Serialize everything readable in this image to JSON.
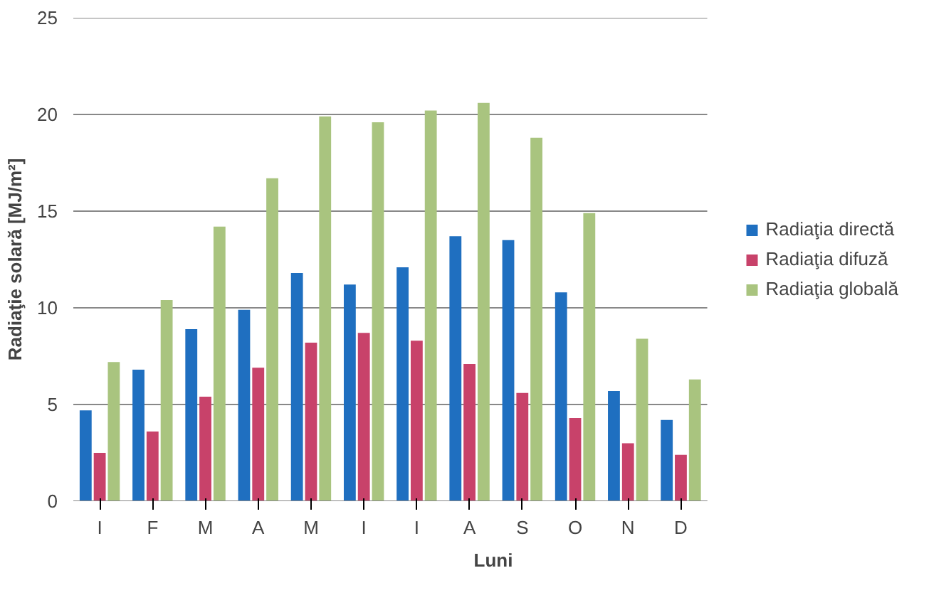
{
  "chart_data": {
    "type": "bar",
    "xlabel": "Luni",
    "ylabel": "Radiaţie solară [MJ/m²]",
    "categories": [
      "I",
      "F",
      "M",
      "A",
      "M",
      "I",
      "I",
      "A",
      "S",
      "O",
      "N",
      "D"
    ],
    "series": [
      {
        "name": "Radiaţia directă",
        "color": "#1f6fc0",
        "values": [
          4.7,
          6.8,
          8.9,
          9.9,
          11.8,
          11.2,
          12.1,
          13.7,
          13.5,
          10.8,
          5.7,
          4.2
        ]
      },
      {
        "name": "Radiaţia difuză",
        "color": "#c8426a",
        "values": [
          2.5,
          3.6,
          5.4,
          6.9,
          8.2,
          8.7,
          8.3,
          7.1,
          5.6,
          4.3,
          3.0,
          2.4
        ]
      },
      {
        "name": "Radiaţia globală",
        "color": "#a9c47f",
        "values": [
          7.2,
          10.4,
          14.2,
          16.7,
          19.9,
          19.6,
          20.2,
          20.6,
          18.8,
          14.9,
          8.4,
          6.3
        ]
      }
    ],
    "ylim": [
      0,
      25
    ],
    "yticks": [
      0,
      5,
      10,
      15,
      20,
      25
    ],
    "grid": "y",
    "legend": "right"
  }
}
